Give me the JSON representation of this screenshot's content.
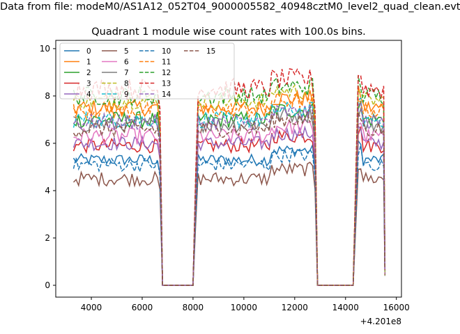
{
  "figure": {
    "suptitle": "Data from file: modeM0/AS1A12_052T04_9000005582_40948cztM0_level2_quad_clean.evt"
  },
  "chart_data": {
    "type": "line",
    "title": "Quadrant 1 module wise count rates with 100.0s bins.",
    "xlabel": "",
    "ylabel": "",
    "x_offset_label": "+4.201e8",
    "xlim": [
      2600,
      16200
    ],
    "ylim": [
      -0.5,
      10.35
    ],
    "xticks": [
      4000,
      6000,
      8000,
      10000,
      12000,
      14000,
      16000
    ],
    "xtick_labels": [
      "4000",
      "6000",
      "8000",
      "10000",
      "12000",
      "14000",
      "16000"
    ],
    "yticks": [
      0,
      2,
      4,
      6,
      8,
      10
    ],
    "ytick_labels": [
      "0",
      "2",
      "4",
      "6",
      "8",
      "10"
    ],
    "grid": false,
    "legend": {
      "placement": "top-left",
      "columns": 4
    },
    "x": [
      3300,
      8200,
      12800,
      14400,
      15550
    ],
    "segments": [
      [
        3300,
        6700
      ],
      [
        8100,
        12800
      ],
      [
        14400,
        15550
      ]
    ],
    "gaps": [
      [
        6800,
        8000
      ],
      [
        12900,
        14300
      ]
    ],
    "series": [
      {
        "name": "0",
        "color": "#1f77b4",
        "dash": false,
        "level": 5.3,
        "noise": 0.25
      },
      {
        "name": "1",
        "color": "#ff7f0e",
        "dash": false,
        "level": 7.5,
        "noise": 0.35
      },
      {
        "name": "2",
        "color": "#2ca02c",
        "dash": false,
        "level": 7.0,
        "noise": 0.35
      },
      {
        "name": "3",
        "color": "#d62728",
        "dash": false,
        "level": 5.9,
        "noise": 0.3
      },
      {
        "name": "4",
        "color": "#9467bd",
        "dash": false,
        "level": 6.0,
        "noise": 0.3
      },
      {
        "name": "5",
        "color": "#8c564b",
        "dash": false,
        "level": 4.5,
        "noise": 0.3
      },
      {
        "name": "6",
        "color": "#e377c2",
        "dash": false,
        "level": 6.3,
        "noise": 0.35
      },
      {
        "name": "7",
        "color": "#7f7f7f",
        "dash": false,
        "level": 6.8,
        "noise": 0.35
      },
      {
        "name": "8",
        "color": "#bcbd22",
        "dash": true,
        "level": 7.8,
        "noise": 0.35
      },
      {
        "name": "9",
        "color": "#17becf",
        "dash": true,
        "level": 7.0,
        "noise": 0.35
      },
      {
        "name": "10",
        "color": "#1f77b4",
        "dash": true,
        "level": 5.1,
        "noise": 0.3
      },
      {
        "name": "11",
        "color": "#ff7f0e",
        "dash": true,
        "level": 7.4,
        "noise": 0.35
      },
      {
        "name": "12",
        "color": "#2ca02c",
        "dash": true,
        "level": 8.0,
        "noise": 0.4
      },
      {
        "name": "13",
        "color": "#d62728",
        "dash": true,
        "level": 8.3,
        "noise": 0.45
      },
      {
        "name": "14",
        "color": "#9467bd",
        "dash": true,
        "level": 6.9,
        "noise": 0.35
      },
      {
        "name": "15",
        "color": "#8c564b",
        "dash": true,
        "level": 6.6,
        "noise": 0.35
      }
    ]
  }
}
